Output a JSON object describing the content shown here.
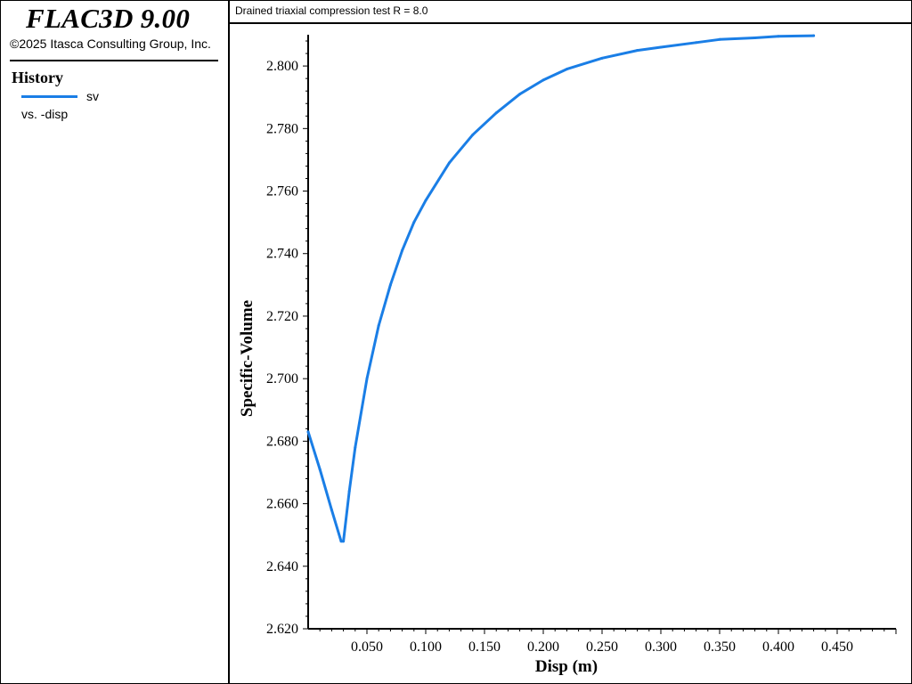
{
  "app": {
    "title": "FLAC3D 9.00",
    "copyright": "©2025 Itasca Consulting Group, Inc."
  },
  "legend": {
    "heading": "History",
    "series_label": "sv",
    "vs_label": "vs. -disp",
    "line_color": "#1a7ee6"
  },
  "chart_data": {
    "type": "line",
    "title": "Drained triaxial compression test R = 8.0",
    "xlabel": "Disp (m)",
    "ylabel": "Specific-Volume",
    "xlim": [
      0.0,
      0.5
    ],
    "ylim": [
      2.62,
      2.81
    ],
    "x_ticks": [
      "0.050",
      "0.100",
      "0.150",
      "0.200",
      "0.250",
      "0.300",
      "0.350",
      "0.400",
      "0.450"
    ],
    "y_ticks": [
      "2.620",
      "2.640",
      "2.660",
      "2.680",
      "2.700",
      "2.720",
      "2.740",
      "2.760",
      "2.780",
      "2.800"
    ],
    "grid": false,
    "series": [
      {
        "name": "sv",
        "color": "#1a7ee6",
        "x": [
          0.0,
          0.01,
          0.02,
          0.028,
          0.03,
          0.035,
          0.04,
          0.05,
          0.06,
          0.07,
          0.08,
          0.09,
          0.1,
          0.12,
          0.14,
          0.16,
          0.18,
          0.2,
          0.22,
          0.25,
          0.28,
          0.3,
          0.33,
          0.35,
          0.38,
          0.4,
          0.43
        ],
        "y": [
          2.683,
          2.671,
          2.658,
          2.648,
          2.648,
          2.664,
          2.678,
          2.7,
          2.717,
          2.73,
          2.741,
          2.75,
          2.757,
          2.769,
          2.778,
          2.785,
          2.791,
          2.7955,
          2.799,
          2.8025,
          2.805,
          2.806,
          2.8075,
          2.8085,
          2.809,
          2.8095,
          2.8097
        ]
      }
    ]
  }
}
